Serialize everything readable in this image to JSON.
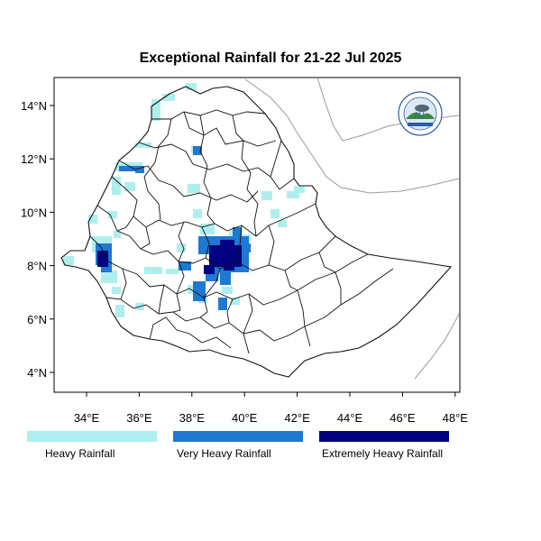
{
  "title": "Exceptional Rainfall for 21-22 Jul 2025",
  "axes": {
    "x_ticks": [
      {
        "value": 34,
        "label": "34°E"
      },
      {
        "value": 36,
        "label": "36°E"
      },
      {
        "value": 38,
        "label": "38°E"
      },
      {
        "value": 40,
        "label": "40°E"
      },
      {
        "value": 42,
        "label": "42°E"
      },
      {
        "value": 44,
        "label": "44°E"
      },
      {
        "value": 46,
        "label": "46°E"
      },
      {
        "value": 48,
        "label": "48°E"
      }
    ],
    "y_ticks": [
      {
        "value": 4,
        "label": "4°N"
      },
      {
        "value": 6,
        "label": "6°N"
      },
      {
        "value": 8,
        "label": "8°N"
      },
      {
        "value": 10,
        "label": "10°N"
      },
      {
        "value": 12,
        "label": "12°N"
      },
      {
        "value": 14,
        "label": "14°N"
      }
    ],
    "lon_range": [
      32.8,
      48.2
    ],
    "lat_range": [
      3.2,
      15.0
    ]
  },
  "legend": [
    {
      "label": "Heavy Rainfall",
      "color": "#aeeeee"
    },
    {
      "label": "Very Heavy Rainfall",
      "color": "#1f78d1"
    },
    {
      "label": "Extremely Heavy Rainfall",
      "color": "#000080"
    }
  ],
  "logo": {
    "icon": "meteorology-institute-logo"
  }
}
